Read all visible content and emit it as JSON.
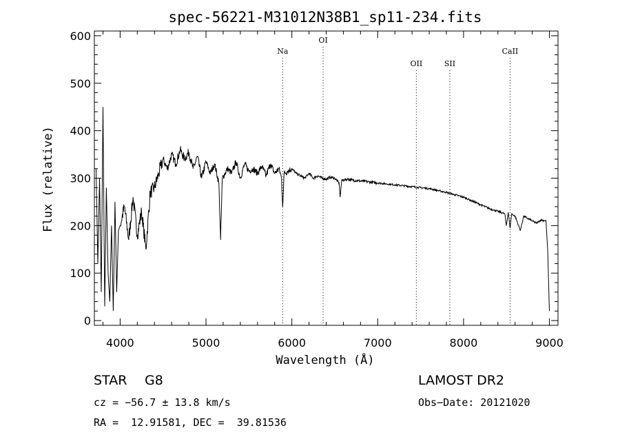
{
  "chart_data": {
    "type": "line",
    "title": "spec-56221-M31012N38B1_sp11-234.fits",
    "xlabel": "Wavelength (Å)",
    "ylabel": "Flux (relative)",
    "xlim": [
      3700,
      9100
    ],
    "ylim": [
      -10,
      610
    ],
    "xticks": [
      4000,
      5000,
      6000,
      7000,
      8000,
      9000
    ],
    "yticks": [
      0,
      100,
      200,
      300,
      400,
      500,
      600
    ],
    "grid": false,
    "lines": [
      {
        "label": "Na",
        "x": 5893
      },
      {
        "label": "OI",
        "x": 6364
      },
      {
        "label": "OII",
        "x": 7450
      },
      {
        "label": "SII",
        "x": 7840
      },
      {
        "label": "CaII",
        "x": 8542
      }
    ],
    "series": [
      {
        "x": [
          3720,
          3740,
          3760,
          3780,
          3800,
          3820,
          3840,
          3860,
          3880,
          3900,
          3920,
          3940,
          3960,
          3980,
          4000,
          4050,
          4100,
          4150,
          4200,
          4250,
          4300,
          4350,
          4400,
          4450,
          4500,
          4550,
          4600,
          4650,
          4700,
          4750,
          4800,
          4850,
          4900,
          4950,
          5000,
          5050,
          5100,
          5150,
          5170,
          5190,
          5250,
          5300,
          5350,
          5400,
          5450,
          5500,
          5550,
          5600,
          5650,
          5700,
          5750,
          5800,
          5850,
          5880,
          5893,
          5910,
          5950,
          6000,
          6050,
          6100,
          6150,
          6200,
          6250,
          6300,
          6350,
          6400,
          6450,
          6500,
          6550,
          6563,
          6580,
          6650,
          6700,
          6800,
          6900,
          7000,
          7100,
          7200,
          7300,
          7400,
          7500,
          7600,
          7700,
          7800,
          7900,
          8000,
          8100,
          8200,
          8300,
          8400,
          8480,
          8498,
          8520,
          8542,
          8560,
          8600,
          8662,
          8700,
          8750,
          8800,
          8850,
          8900,
          8960,
          8980,
          9000
        ],
        "y": [
          320,
          120,
          300,
          60,
          450,
          30,
          280,
          100,
          40,
          200,
          20,
          250,
          60,
          190,
          200,
          240,
          170,
          260,
          180,
          230,
          150,
          270,
          280,
          310,
          340,
          320,
          350,
          330,
          360,
          340,
          355,
          320,
          345,
          300,
          335,
          310,
          330,
          290,
          170,
          300,
          320,
          310,
          335,
          300,
          330,
          315,
          320,
          310,
          325,
          305,
          330,
          310,
          320,
          300,
          240,
          310,
          315,
          320,
          310,
          305,
          300,
          310,
          300,
          305,
          300,
          298,
          302,
          300,
          290,
          260,
          295,
          298,
          296,
          294,
          292,
          290,
          288,
          286,
          284,
          282,
          280,
          278,
          274,
          270,
          265,
          260,
          252,
          244,
          236,
          230,
          225,
          200,
          228,
          195,
          225,
          220,
          190,
          220,
          215,
          210,
          205,
          212,
          210,
          150,
          20
        ]
      }
    ]
  },
  "info": {
    "class": "STAR",
    "subclass": "G8",
    "survey": "LAMOST DR2",
    "cz": "cz = −56.7 ± 13.8 km/s",
    "obs_date": "Obs−Date: 20121020",
    "coords": "RA =  12.91581, DEC =  39.81536"
  }
}
